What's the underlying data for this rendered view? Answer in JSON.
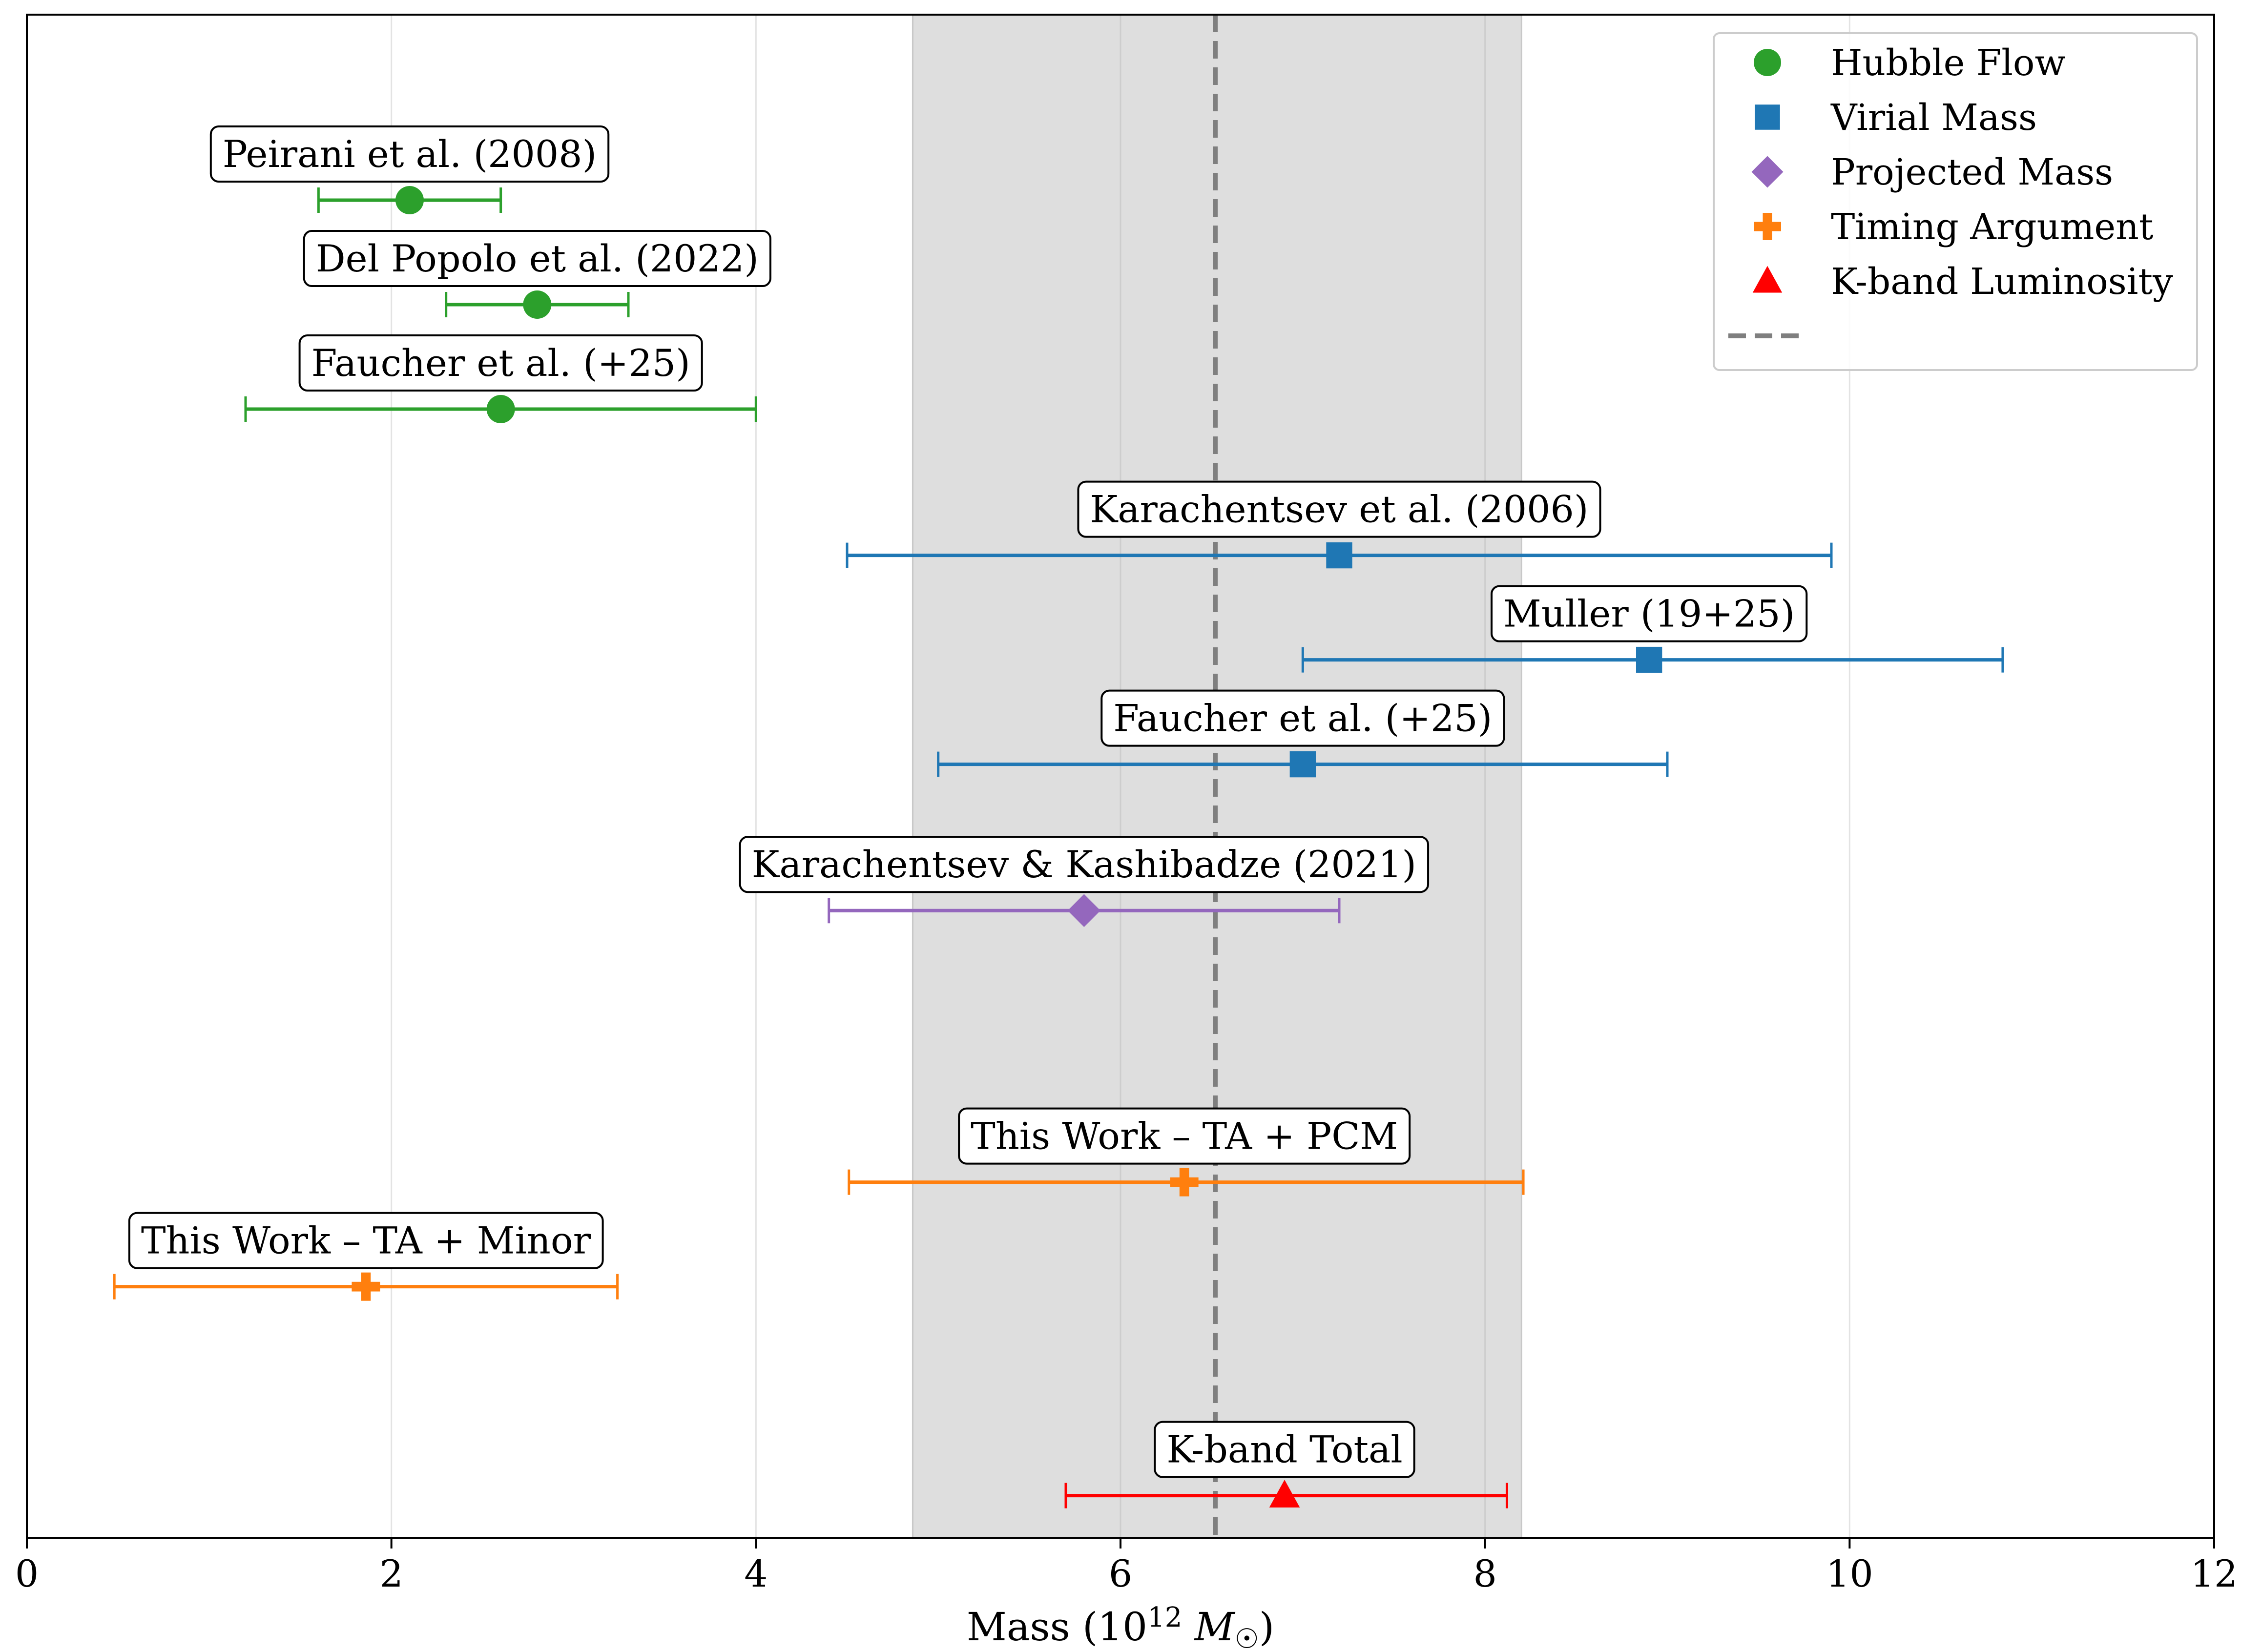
{
  "chart_data": {
    "type": "scatter",
    "title": "",
    "xlabel": "Mass (10¹² M☉)",
    "xlabel_parts": {
      "prefix": "Mass (10",
      "exponent": "12",
      "unit": " M",
      "subscript": "☉",
      "suffix": ")"
    },
    "ylabel": "",
    "xlim": [
      0,
      12
    ],
    "x_ticks": [
      0,
      2,
      4,
      6,
      8,
      10,
      12
    ],
    "x_tick_labels": [
      "0",
      "2",
      "4",
      "6",
      "8",
      "10",
      "12"
    ],
    "grid": "vertical",
    "legend_position": "top-right",
    "reference_line": {
      "value": 6.52,
      "style": "dashed",
      "color": "#7f7f7f"
    },
    "shaded_band": {
      "range": [
        4.86,
        8.2
      ],
      "color": "#dedede"
    },
    "series": [
      {
        "name": "Hubble Flow",
        "marker": "circle",
        "color": "#2ca02c"
      },
      {
        "name": "Virial Mass",
        "marker": "square",
        "color": "#1f77b4"
      },
      {
        "name": "Projected Mass",
        "marker": "diamond",
        "color": "#9467bd"
      },
      {
        "name": "Timing Argument",
        "marker": "plus",
        "color": "#ff7f0e"
      },
      {
        "name": "K-band Luminosity",
        "marker": "triangle",
        "color": "#ff0000"
      }
    ],
    "points": [
      {
        "label": "Peirani et al. (2008)",
        "series": "Hubble Flow",
        "y_rank": 0.0,
        "value": 2.1,
        "err_low": 1.6,
        "err_high": 2.6
      },
      {
        "label": "Del Popolo et al. (2022)",
        "series": "Hubble Flow",
        "y_rank": 1.0,
        "value": 2.8,
        "err_low": 2.3,
        "err_high": 3.3
      },
      {
        "label": "Faucher et al. (+25)",
        "series": "Hubble Flow",
        "y_rank": 2.0,
        "value": 2.6,
        "err_low": 1.2,
        "err_high": 4.0
      },
      {
        "label": "Karachentsev et al. (2006)",
        "series": "Virial Mass",
        "y_rank": 3.4,
        "value": 7.2,
        "err_low": 4.5,
        "err_high": 9.9
      },
      {
        "label": "Muller (19+25)",
        "series": "Virial Mass",
        "y_rank": 4.4,
        "value": 8.9,
        "err_low": 7.0,
        "err_high": 10.84
      },
      {
        "label": "Faucher et al. (+25)",
        "series": "Virial Mass",
        "y_rank": 5.4,
        "value": 7.0,
        "err_low": 5.0,
        "err_high": 9.0
      },
      {
        "label": "Karachentsev & Kashibadze (2021)",
        "series": "Projected Mass",
        "y_rank": 6.8,
        "value": 5.8,
        "err_low": 4.4,
        "err_high": 7.2
      },
      {
        "label": "This Work – TA + PCM",
        "series": "Timing Argument",
        "y_rank": 9.4,
        "value": 6.35,
        "err_low": 4.51,
        "err_high": 8.21
      },
      {
        "label": "This Work – TA + Minor",
        "series": "Timing Argument",
        "y_rank": 10.4,
        "value": 1.86,
        "err_low": 0.48,
        "err_high": 3.24
      },
      {
        "label": "K-band Total",
        "series": "K-band Luminosity",
        "y_rank": 12.4,
        "value": 6.9,
        "err_low": 5.7,
        "err_high": 8.12
      }
    ]
  },
  "legend": {
    "items": [
      "Hubble Flow",
      "Virial Mass",
      "Projected Mass",
      "Timing Argument",
      "K-band Luminosity"
    ]
  }
}
